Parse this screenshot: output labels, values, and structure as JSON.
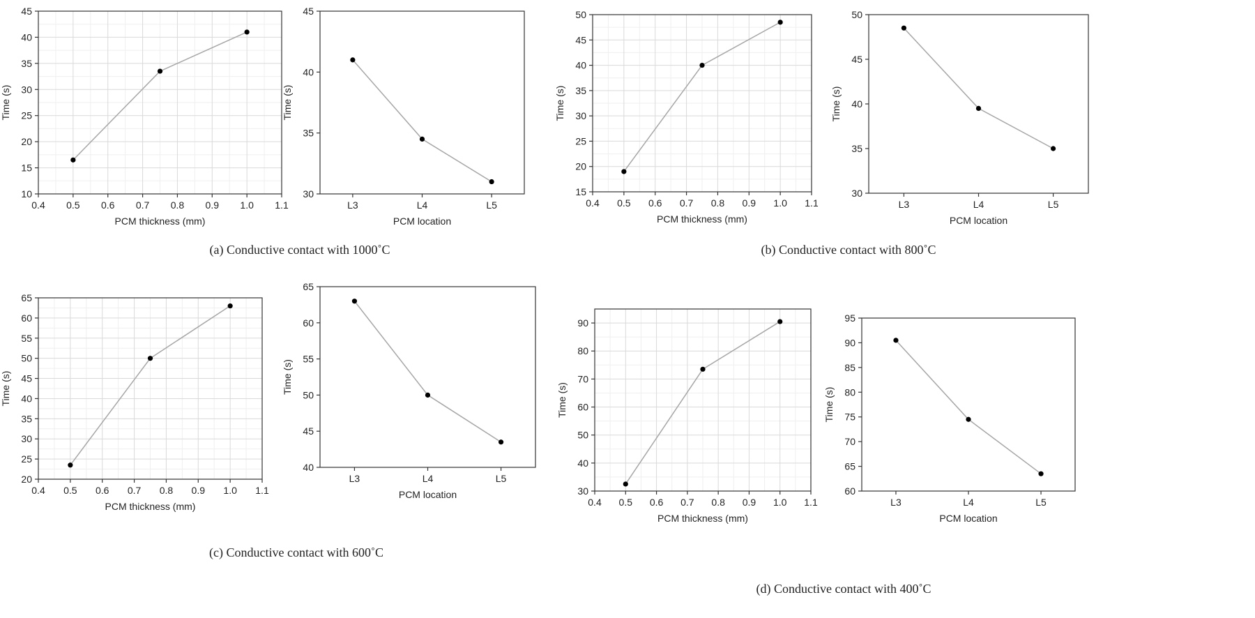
{
  "chart_data": [
    {
      "id": "a1",
      "panel": "a",
      "type": "line",
      "xlabel": "PCM thickness (mm)",
      "ylabel": "Time (s)",
      "xlim": [
        0.4,
        1.1
      ],
      "ylim": [
        10,
        45
      ],
      "xticks": [
        0.4,
        0.5,
        0.6,
        0.7,
        0.8,
        0.9,
        1.0,
        1.1
      ],
      "yticks": [
        10,
        15,
        20,
        25,
        30,
        35,
        40,
        45
      ],
      "x": [
        0.5,
        0.75,
        1.0
      ],
      "values": [
        16.5,
        33.5,
        41
      ],
      "grid": true
    },
    {
      "id": "a2",
      "panel": "a",
      "type": "line",
      "xlabel": "PCM location",
      "ylabel": "Time (s)",
      "categories": [
        "L3",
        "L4",
        "L5"
      ],
      "ylim": [
        30,
        45
      ],
      "yticks": [
        30,
        35,
        40,
        45
      ],
      "values": [
        41,
        34.5,
        31
      ],
      "grid": false
    },
    {
      "id": "b1",
      "panel": "b",
      "type": "line",
      "xlabel": "PCM thickness (mm)",
      "ylabel": "Time (s)",
      "xlim": [
        0.4,
        1.1
      ],
      "ylim": [
        15,
        50
      ],
      "xticks": [
        0.4,
        0.5,
        0.6,
        0.7,
        0.8,
        0.9,
        1.0,
        1.1
      ],
      "yticks": [
        15,
        20,
        25,
        30,
        35,
        40,
        45,
        50
      ],
      "x": [
        0.5,
        0.75,
        1.0
      ],
      "values": [
        19,
        40,
        48.5
      ],
      "grid": true
    },
    {
      "id": "b2",
      "panel": "b",
      "type": "line",
      "xlabel": "PCM location",
      "ylabel": "Time (s)",
      "categories": [
        "L3",
        "L4",
        "L5"
      ],
      "ylim": [
        30,
        50
      ],
      "yticks": [
        30,
        35,
        40,
        45,
        50
      ],
      "values": [
        48.5,
        39.5,
        35
      ],
      "grid": false
    },
    {
      "id": "c1",
      "panel": "c",
      "type": "line",
      "xlabel": "PCM thickness (mm)",
      "ylabel": "Time (s)",
      "xlim": [
        0.4,
        1.1
      ],
      "ylim": [
        20,
        65
      ],
      "xticks": [
        0.4,
        0.5,
        0.6,
        0.7,
        0.8,
        0.9,
        1.0,
        1.1
      ],
      "yticks": [
        20,
        25,
        30,
        35,
        40,
        45,
        50,
        55,
        60,
        65
      ],
      "x": [
        0.5,
        0.75,
        1.0
      ],
      "values": [
        23.5,
        50,
        63
      ],
      "grid": true
    },
    {
      "id": "c2",
      "panel": "c",
      "type": "line",
      "xlabel": "PCM location",
      "ylabel": "Time (s)",
      "categories": [
        "L3",
        "L4",
        "L5"
      ],
      "ylim": [
        40,
        65
      ],
      "yticks": [
        40,
        45,
        50,
        55,
        60,
        65
      ],
      "values": [
        63,
        50,
        43.5
      ],
      "grid": false
    },
    {
      "id": "d1",
      "panel": "d",
      "type": "line",
      "xlabel": "PCM thickness (mm)",
      "ylabel": "Time (s)",
      "xlim": [
        0.4,
        1.1
      ],
      "ylim": [
        30,
        95
      ],
      "xticks": [
        0.4,
        0.5,
        0.6,
        0.7,
        0.8,
        0.9,
        1.0,
        1.1
      ],
      "yticks": [
        30,
        40,
        50,
        60,
        70,
        80,
        90
      ],
      "x": [
        0.5,
        0.75,
        1.0
      ],
      "values": [
        32.5,
        73.5,
        90.5
      ],
      "grid": true
    },
    {
      "id": "d2",
      "panel": "d",
      "type": "line",
      "xlabel": "PCM location",
      "ylabel": "Time (s)",
      "categories": [
        "L3",
        "L4",
        "L5"
      ],
      "ylim": [
        60,
        95
      ],
      "yticks": [
        60,
        65,
        70,
        75,
        80,
        85,
        90,
        95
      ],
      "values": [
        90.5,
        74.5,
        63.5
      ],
      "grid": false
    }
  ],
  "captions": {
    "a": "(a) Conductive contact with 1000˚C",
    "b": "(b) Conductive contact with 800˚C",
    "c": "(c) Conductive contact with 600˚C",
    "d": "(d) Conductive contact with 400˚C"
  },
  "colors": {
    "line": "#a6a6a6",
    "point": "#000000",
    "axis": "#333333"
  }
}
